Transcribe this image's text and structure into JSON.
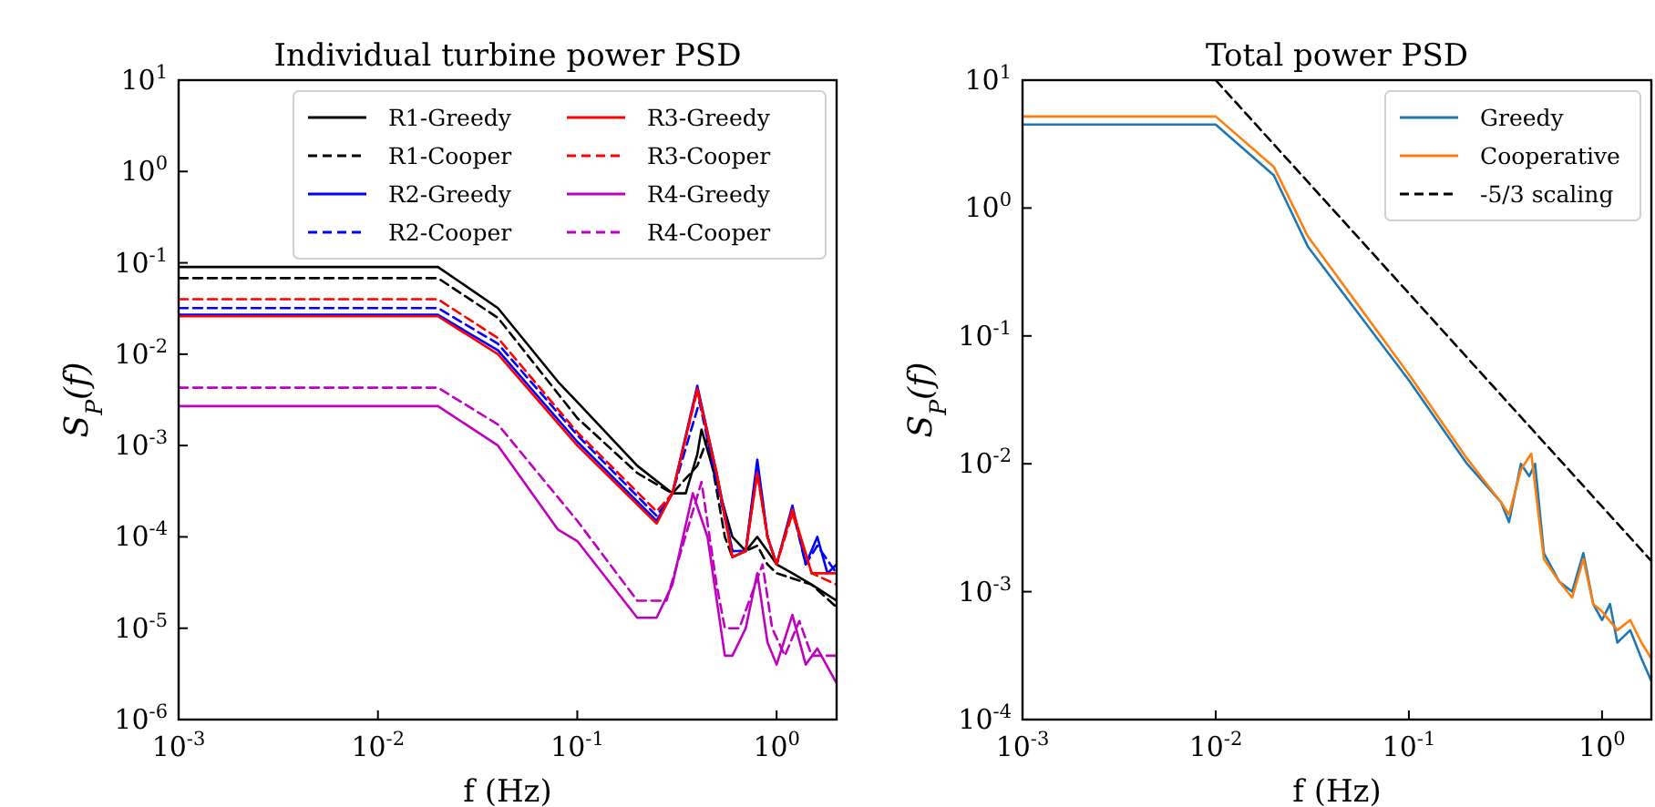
{
  "chart_data": [
    {
      "type": "line",
      "title": "Individual turbine power PSD",
      "xlabel": "f (Hz)",
      "ylabel": "S$_{P}$(f)",
      "log": "xy",
      "legend": "top right",
      "grid": false,
      "xlim": [
        0.001,
        2
      ],
      "ylim": [
        1e-06,
        10
      ],
      "xticks": [
        {
          "value": 0.001,
          "label": "10$^{-3}$"
        },
        {
          "value": 0.01,
          "label": "10$^{-2}$"
        },
        {
          "value": 0.1,
          "label": "10$^{-1}$"
        },
        {
          "value": 1,
          "label": "10$^{0}$"
        }
      ],
      "yticks": [
        {
          "value": 1e-06,
          "label": "10$^{-6}$"
        },
        {
          "value": 1e-05,
          "label": "10$^{-5}$"
        },
        {
          "value": 0.0001,
          "label": "10$^{-4}$"
        },
        {
          "value": 0.001,
          "label": "10$^{-3}$"
        },
        {
          "value": 0.01,
          "label": "10$^{-2}$"
        },
        {
          "value": 0.1,
          "label": "10$^{-1}$"
        },
        {
          "value": 1,
          "label": "10$^{0}$"
        },
        {
          "value": 10,
          "label": "10$^{1}$"
        }
      ],
      "series": [
        {
          "name": "R1-Greedy",
          "color": "#000000",
          "line_style": "solid",
          "x": [
            0.001,
            0.02,
            0.04,
            0.08,
            0.1,
            0.2,
            0.3,
            0.35,
            0.4,
            0.42,
            0.5,
            0.6,
            0.7,
            0.8,
            0.9,
            1.0,
            1.2,
            1.5,
            2
          ],
          "values": [
            0.09,
            0.09,
            0.032,
            0.005,
            0.003,
            0.0006,
            0.0003,
            0.0003,
            0.0008,
            0.0015,
            0.0004,
            0.0001,
            7e-05,
            0.0001,
            7e-05,
            5e-05,
            4e-05,
            3e-05,
            2e-05
          ]
        },
        {
          "name": "R1-Cooper",
          "color": "#000000",
          "line_style": "dashed",
          "x": [
            0.001,
            0.02,
            0.04,
            0.1,
            0.2,
            0.3,
            0.4,
            0.45,
            0.55,
            0.6,
            0.8,
            0.9,
            1.0,
            1.5,
            2
          ],
          "values": [
            0.068,
            0.068,
            0.025,
            0.002,
            0.0005,
            0.0003,
            0.0006,
            0.0012,
            0.0001,
            6e-05,
            8e-05,
            5e-05,
            4e-05,
            3e-05,
            1.7e-05
          ]
        },
        {
          "name": "R2-Greedy",
          "color": "#0000ff",
          "line_style": "solid",
          "x": [
            0.001,
            0.02,
            0.04,
            0.1,
            0.25,
            0.3,
            0.4,
            0.5,
            0.6,
            0.7,
            0.8,
            0.9,
            1.0,
            1.2,
            1.4,
            1.6,
            1.8,
            2
          ],
          "values": [
            0.027,
            0.027,
            0.011,
            0.0011,
            0.00015,
            0.0003,
            0.0045,
            0.0005,
            7e-05,
            7e-05,
            0.0007,
            0.0001,
            5e-05,
            0.00022,
            5e-05,
            0.0001,
            4e-05,
            5e-05
          ]
        },
        {
          "name": "R2-Cooper",
          "color": "#0000ff",
          "line_style": "dashed",
          "x": [
            0.001,
            0.02,
            0.04,
            0.1,
            0.25,
            0.3,
            0.41,
            0.5,
            0.6,
            0.7,
            0.8,
            0.9,
            1.0,
            1.2,
            1.4,
            1.6,
            2
          ],
          "values": [
            0.032,
            0.032,
            0.013,
            0.0013,
            0.00017,
            0.0003,
            0.003,
            0.0004,
            7e-05,
            7e-05,
            0.0006,
            0.0001,
            5e-05,
            0.0002,
            5e-05,
            8e-05,
            4e-05
          ]
        },
        {
          "name": "R3-Greedy",
          "color": "#ff0000",
          "line_style": "solid",
          "x": [
            0.001,
            0.02,
            0.04,
            0.1,
            0.25,
            0.3,
            0.4,
            0.5,
            0.6,
            0.7,
            0.8,
            0.9,
            1.0,
            1.2,
            1.5,
            2
          ],
          "values": [
            0.026,
            0.026,
            0.01,
            0.001,
            0.00014,
            0.0003,
            0.0042,
            0.0005,
            6e-05,
            7e-05,
            0.0005,
            0.0001,
            5e-05,
            0.0002,
            4e-05,
            4e-05
          ]
        },
        {
          "name": "R3-Cooper",
          "color": "#ff0000",
          "line_style": "dashed",
          "x": [
            0.001,
            0.02,
            0.04,
            0.1,
            0.25,
            0.3,
            0.4,
            0.5,
            0.6,
            0.7,
            0.8,
            0.9,
            1.0,
            1.2,
            1.5,
            2
          ],
          "values": [
            0.04,
            0.04,
            0.015,
            0.0014,
            0.00019,
            0.0003,
            0.004,
            0.0005,
            6e-05,
            7e-05,
            0.0005,
            0.0001,
            5e-05,
            0.00018,
            4e-05,
            3e-05
          ]
        },
        {
          "name": "R4-Greedy",
          "color": "#bf00bf",
          "line_style": "solid",
          "x": [
            0.001,
            0.02,
            0.04,
            0.08,
            0.1,
            0.2,
            0.25,
            0.3,
            0.38,
            0.45,
            0.55,
            0.6,
            0.7,
            0.8,
            0.9,
            1.0,
            1.2,
            1.4,
            1.6,
            2
          ],
          "values": [
            0.0027,
            0.0027,
            0.001,
            0.00012,
            9e-05,
            1.3e-05,
            1.3e-05,
            3e-05,
            0.0003,
            0.0001,
            5e-06,
            5e-06,
            1e-05,
            4e-05,
            7e-06,
            4e-06,
            1.4e-05,
            4e-06,
            6e-06,
            2.5e-06
          ]
        },
        {
          "name": "R4-Cooper",
          "color": "#bf00bf",
          "line_style": "dashed",
          "x": [
            0.001,
            0.02,
            0.04,
            0.1,
            0.2,
            0.28,
            0.42,
            0.5,
            0.55,
            0.65,
            0.85,
            0.95,
            1.1,
            1.3,
            1.5,
            2
          ],
          "values": [
            0.0043,
            0.0043,
            0.0017,
            0.00015,
            2e-05,
            2e-05,
            0.0004,
            3e-05,
            1e-05,
            1e-05,
            5e-05,
            1e-05,
            5e-06,
            1.2e-05,
            5e-06,
            5e-06
          ]
        }
      ]
    },
    {
      "type": "line",
      "title": "Total power PSD",
      "xlabel": "f (Hz)",
      "ylabel": "S$_{P}$(f)",
      "log": "xy",
      "legend": "top right",
      "grid": false,
      "xlim": [
        0.001,
        1.8
      ],
      "ylim": [
        0.0001,
        10
      ],
      "xticks": [
        {
          "value": 0.001,
          "label": "10$^{-3}$"
        },
        {
          "value": 0.01,
          "label": "10$^{-2}$"
        },
        {
          "value": 0.1,
          "label": "10$^{-1}$"
        },
        {
          "value": 1,
          "label": "10$^{0}$"
        }
      ],
      "yticks": [
        {
          "value": 0.0001,
          "label": "10$^{-4}$"
        },
        {
          "value": 0.001,
          "label": "10$^{-3}$"
        },
        {
          "value": 0.01,
          "label": "10$^{-2}$"
        },
        {
          "value": 0.1,
          "label": "10$^{-1}$"
        },
        {
          "value": 1,
          "label": "10$^{0}$"
        },
        {
          "value": 10,
          "label": "10$^{1}$"
        }
      ],
      "series": [
        {
          "name": "Greedy",
          "color": "#1f77b4",
          "line_style": "solid",
          "x": [
            0.001,
            0.01,
            0.02,
            0.03,
            0.1,
            0.2,
            0.3,
            0.33,
            0.38,
            0.42,
            0.45,
            0.5,
            0.6,
            0.7,
            0.8,
            0.9,
            1.0,
            1.1,
            1.2,
            1.4,
            1.6,
            1.8
          ],
          "values": [
            4.5,
            4.5,
            1.8,
            0.5,
            0.045,
            0.01,
            0.005,
            0.0035,
            0.01,
            0.008,
            0.01,
            0.002,
            0.0012,
            0.001,
            0.002,
            0.0008,
            0.0006,
            0.0008,
            0.0004,
            0.0005,
            0.0003,
            0.0002
          ]
        },
        {
          "name": "Cooperative",
          "color": "#ff7f0e",
          "line_style": "solid",
          "x": [
            0.001,
            0.01,
            0.02,
            0.03,
            0.1,
            0.2,
            0.3,
            0.33,
            0.38,
            0.43,
            0.5,
            0.6,
            0.7,
            0.8,
            0.9,
            1.0,
            1.2,
            1.4,
            1.6,
            1.8
          ],
          "values": [
            5.2,
            5.2,
            2.1,
            0.6,
            0.05,
            0.011,
            0.005,
            0.004,
            0.009,
            0.012,
            0.0018,
            0.0012,
            0.0009,
            0.0018,
            0.0008,
            0.0007,
            0.0005,
            0.0006,
            0.0004,
            0.0003
          ]
        },
        {
          "name": "-5/3 scaling",
          "color": "#000000",
          "line_style": "dashed",
          "x": [
            0.01,
            1.8
          ],
          "values": [
            10,
            0.00174
          ]
        }
      ]
    }
  ]
}
